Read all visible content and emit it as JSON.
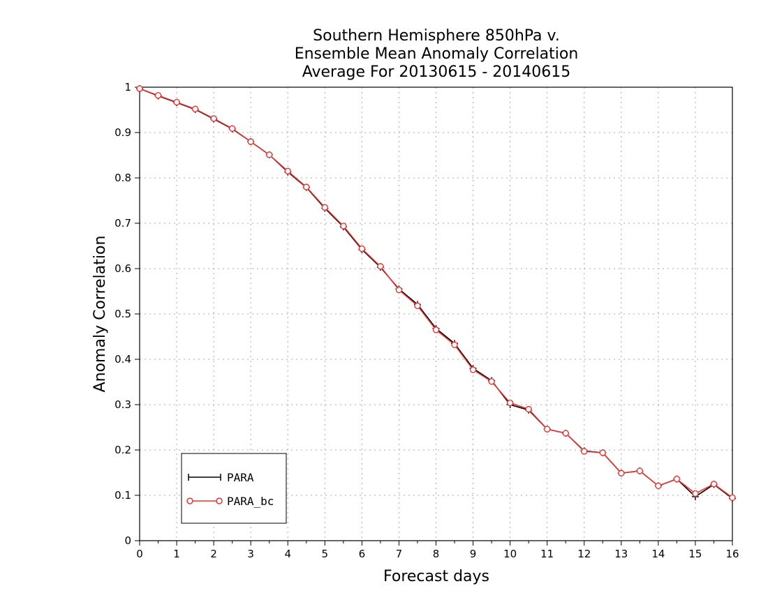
{
  "chart_data": {
    "type": "line",
    "title_lines": [
      "Southern Hemisphere 850hPa v.",
      "Ensemble Mean Anomaly Correlation",
      "Average For 20130615 - 20140615"
    ],
    "xlabel": "Forecast days",
    "ylabel": "Anomaly Correlation",
    "xlim": [
      0,
      16
    ],
    "ylim": [
      0,
      1
    ],
    "xticks": [
      "0",
      "1",
      "2",
      "3",
      "4",
      "5",
      "6",
      "7",
      "8",
      "9",
      "10",
      "11",
      "12",
      "13",
      "14",
      "15",
      "16"
    ],
    "yticks": [
      "0",
      "0.1",
      "0.2",
      "0.3",
      "0.4",
      "0.5",
      "0.6",
      "0.7",
      "0.8",
      "0.9",
      "1"
    ],
    "grid": true,
    "legend_position": "bottom-left",
    "x": [
      0,
      0.5,
      1,
      1.5,
      2,
      2.5,
      3,
      3.5,
      4,
      4.5,
      5,
      5.5,
      6,
      6.5,
      7,
      7.5,
      8,
      8.5,
      9,
      9.5,
      10,
      10.5,
      11,
      11.5,
      12,
      12.5,
      13,
      13.5,
      14,
      14.5,
      15,
      15.5,
      16
    ],
    "series": [
      {
        "name": "PARA",
        "color": "#000000",
        "marker": "plus",
        "values": [
          0.997,
          0.981,
          0.966,
          0.951,
          0.93,
          0.908,
          0.88,
          0.851,
          0.813,
          0.779,
          0.733,
          0.692,
          0.642,
          0.603,
          0.555,
          0.521,
          0.468,
          0.435,
          0.38,
          0.353,
          0.3,
          0.288,
          0.246,
          0.237,
          0.198,
          0.194,
          0.149,
          0.154,
          0.121,
          0.136,
          0.097,
          0.124,
          0.093
        ]
      },
      {
        "name": "PARA_bc",
        "color": "#ee3333",
        "marker": "circle",
        "values": [
          0.997,
          0.982,
          0.967,
          0.952,
          0.931,
          0.909,
          0.88,
          0.851,
          0.815,
          0.78,
          0.735,
          0.694,
          0.644,
          0.605,
          0.553,
          0.518,
          0.465,
          0.432,
          0.377,
          0.351,
          0.304,
          0.29,
          0.246,
          0.237,
          0.197,
          0.194,
          0.149,
          0.154,
          0.121,
          0.136,
          0.104,
          0.125,
          0.095
        ]
      }
    ]
  }
}
